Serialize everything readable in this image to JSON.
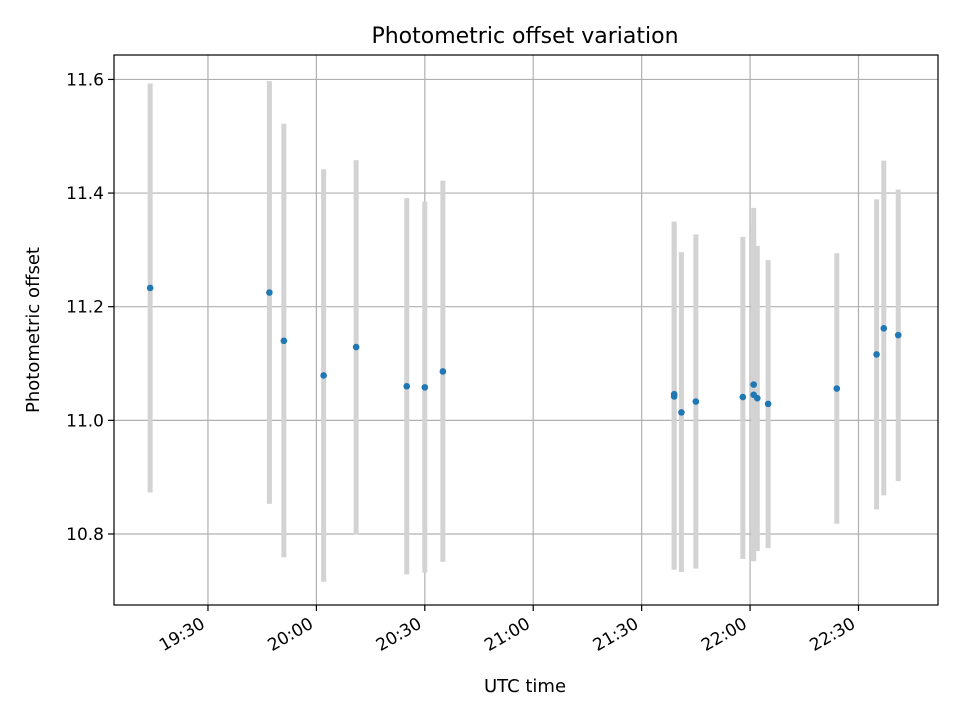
{
  "chart_data": {
    "type": "scatter",
    "title": "Photometric offset variation",
    "xlabel": "UTC time",
    "ylabel": "Photometric offset",
    "x_ticks": [
      "19:30",
      "20:00",
      "20:30",
      "21:00",
      "21:30",
      "22:00",
      "22:30"
    ],
    "y_ticks": [
      "10.8",
      "11.0",
      "11.2",
      "11.4",
      "11.6"
    ],
    "xlim": [
      "19:04",
      "22:52"
    ],
    "ylim": [
      10.675,
      11.643
    ],
    "grid": true,
    "legend": "none",
    "colors": {
      "points": "#1f77b4",
      "error_bars": "#d3d3d3",
      "grid": "#b0b0b0"
    },
    "points": [
      {
        "x": "19:14",
        "y": 11.233,
        "y_low": 10.873,
        "y_high": 11.593
      },
      {
        "x": "19:47",
        "y": 11.225,
        "y_low": 10.853,
        "y_high": 11.597
      },
      {
        "x": "19:51",
        "y": 11.14,
        "y_low": 10.759,
        "y_high": 11.522
      },
      {
        "x": "20:02",
        "y": 11.079,
        "y_low": 10.716,
        "y_high": 11.442
      },
      {
        "x": "20:11",
        "y": 11.129,
        "y_low": 10.799,
        "y_high": 11.458
      },
      {
        "x": "20:25",
        "y": 11.06,
        "y_low": 10.729,
        "y_high": 11.391
      },
      {
        "x": "20:30",
        "y": 11.058,
        "y_low": 10.732,
        "y_high": 11.385
      },
      {
        "x": "20:35",
        "y": 11.086,
        "y_low": 10.751,
        "y_high": 11.422
      },
      {
        "x": "21:39",
        "y": 11.042,
        "y_low": 10.737,
        "y_high": 11.347
      },
      {
        "x": "21:39",
        "y": 11.046,
        "y_low": 10.742,
        "y_high": 11.35
      },
      {
        "x": "21:41",
        "y": 11.014,
        "y_low": 10.733,
        "y_high": 11.296
      },
      {
        "x": "21:45",
        "y": 11.033,
        "y_low": 10.739,
        "y_high": 11.327
      },
      {
        "x": "21:58",
        "y": 11.041,
        "y_low": 10.756,
        "y_high": 11.323
      },
      {
        "x": "22:01",
        "y": 11.063,
        "y_low": 10.752,
        "y_high": 11.374
      },
      {
        "x": "22:01",
        "y": 11.045,
        "y_low": 10.754,
        "y_high": 11.342
      },
      {
        "x": "22:02",
        "y": 11.039,
        "y_low": 10.77,
        "y_high": 11.307
      },
      {
        "x": "22:05",
        "y": 11.029,
        "y_low": 10.775,
        "y_high": 11.282
      },
      {
        "x": "22:24",
        "y": 11.056,
        "y_low": 10.818,
        "y_high": 11.294
      },
      {
        "x": "22:35",
        "y": 11.116,
        "y_low": 10.843,
        "y_high": 11.389
      },
      {
        "x": "22:37",
        "y": 11.162,
        "y_low": 10.868,
        "y_high": 11.457
      },
      {
        "x": "22:41",
        "y": 11.15,
        "y_low": 10.893,
        "y_high": 11.406
      }
    ]
  }
}
